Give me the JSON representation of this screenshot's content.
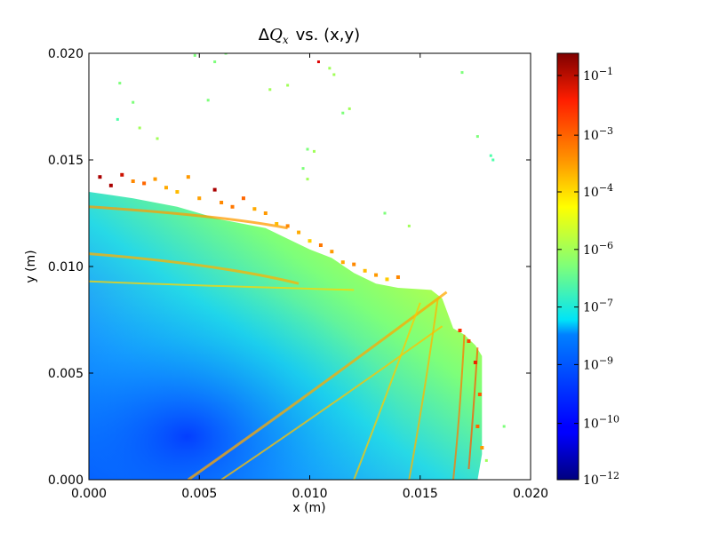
{
  "chart_data": {
    "type": "scatter",
    "title": "ΔQx vs. (x,y)",
    "title_parts": {
      "delta": "Δ",
      "var": "Q",
      "sub": "x",
      "rest": "vs. (x,y)"
    },
    "xlabel": "x (m)",
    "ylabel": "y (m)",
    "xlim": [
      0.0,
      0.02
    ],
    "ylim": [
      0.0,
      0.02
    ],
    "xticks": [
      "0.000",
      "0.005",
      "0.010",
      "0.015",
      "0.020"
    ],
    "yticks": [
      "0.000",
      "0.005",
      "0.010",
      "0.015",
      "0.020"
    ],
    "xtick_values": [
      0.0,
      0.005,
      0.01,
      0.015,
      0.02
    ],
    "ytick_values": [
      0.0,
      0.005,
      0.01,
      0.015,
      0.02
    ],
    "grid": false,
    "colorbar": {
      "scale": "log",
      "colormap": "jet",
      "range": [
        1e-12,
        0.3
      ],
      "labels": [
        {
          "base": "10",
          "exp": "−1",
          "value": 0.1
        },
        {
          "base": "10",
          "exp": "−3",
          "value": 0.001
        },
        {
          "base": "10",
          "exp": "−4",
          "value": 0.0001
        },
        {
          "base": "10",
          "exp": "−6",
          "value": 1e-06
        },
        {
          "base": "10",
          "exp": "−7",
          "value": 1e-07
        },
        {
          "base": "10",
          "exp": "−9",
          "value": 1e-09
        },
        {
          "base": "10",
          "exp": "−10",
          "value": 1e-10
        },
        {
          "base": "10",
          "exp": "−12",
          "value": 1e-12
        }
      ],
      "label_fractions": [
        0.948,
        0.808,
        0.675,
        0.54,
        0.405,
        0.27,
        0.132,
        0.0
      ]
    },
    "stable_region": {
      "outline_y_at_x": [
        [
          0.0,
          0.0135
        ],
        [
          0.002,
          0.0132
        ],
        [
          0.004,
          0.0128
        ],
        [
          0.006,
          0.0122
        ],
        [
          0.008,
          0.0118
        ],
        [
          0.009,
          0.0113
        ],
        [
          0.01,
          0.0108
        ],
        [
          0.011,
          0.0104
        ],
        [
          0.012,
          0.0097
        ],
        [
          0.013,
          0.0092
        ],
        [
          0.014,
          0.009
        ],
        [
          0.0155,
          0.0089
        ],
        [
          0.016,
          0.0085
        ],
        [
          0.0165,
          0.0071
        ],
        [
          0.017,
          0.0068
        ],
        [
          0.0175,
          0.0063
        ],
        [
          0.0178,
          0.0058
        ],
        [
          0.0178,
          0.0012
        ],
        [
          0.0176,
          0.0
        ]
      ]
    },
    "scattered_points": [
      [
        0.0014,
        0.0186,
        "#7dff7a"
      ],
      [
        0.002,
        0.0177,
        "#7dff7a"
      ],
      [
        0.0013,
        0.0169,
        "#4dffaa"
      ],
      [
        0.0023,
        0.0165,
        "#a0ff57"
      ],
      [
        0.0031,
        0.016,
        "#a0ff57"
      ],
      [
        0.0048,
        0.0199,
        "#7dff7a"
      ],
      [
        0.0057,
        0.0196,
        "#7dff7a"
      ],
      [
        0.0062,
        0.02,
        "#7dff7a"
      ],
      [
        0.0054,
        0.0178,
        "#7dff7a"
      ],
      [
        0.0082,
        0.0183,
        "#a0ff57"
      ],
      [
        0.009,
        0.0185,
        "#a0ff57"
      ],
      [
        0.0104,
        0.0196,
        "#dd0000"
      ],
      [
        0.0109,
        0.0193,
        "#a0ff57"
      ],
      [
        0.0111,
        0.019,
        "#a0ff57"
      ],
      [
        0.0115,
        0.0172,
        "#7dff7a"
      ],
      [
        0.0118,
        0.0174,
        "#a0ff57"
      ],
      [
        0.0099,
        0.0155,
        "#7dff7a"
      ],
      [
        0.0102,
        0.0154,
        "#a0ff57"
      ],
      [
        0.0097,
        0.0146,
        "#7dff7a"
      ],
      [
        0.0099,
        0.0141,
        "#a0ff57"
      ],
      [
        0.0134,
        0.0125,
        "#7dff7a"
      ],
      [
        0.0145,
        0.0119,
        "#a0ff57"
      ],
      [
        0.0169,
        0.0191,
        "#7dff7a"
      ],
      [
        0.0176,
        0.0161,
        "#7dff7a"
      ],
      [
        0.0182,
        0.0152,
        "#4dffaa"
      ],
      [
        0.0183,
        0.015,
        "#4dffaa"
      ],
      [
        0.0188,
        0.0025,
        "#7dff7a"
      ],
      [
        0.018,
        0.0009,
        "#a0ff57"
      ]
    ]
  }
}
